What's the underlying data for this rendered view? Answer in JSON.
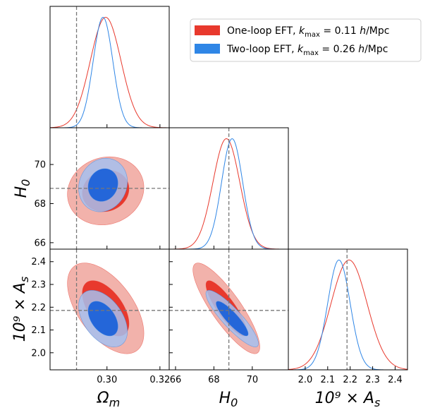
{
  "chart_data": {
    "type": "triangle-corner-plot",
    "legend": {
      "placement": "top-right",
      "entries": [
        {
          "label_prefix": "One-loop EFT, ",
          "k_var": "k",
          "k_sub": "max",
          "k_value": " = 0.11 ",
          "unit_h": "h",
          "unit_rest": "/Mpc",
          "color": "#e8392d"
        },
        {
          "label_prefix": "Two-loop EFT, ",
          "k_var": "k",
          "k_sub": "max",
          "k_value": " = 0.26 ",
          "unit_h": "h",
          "unit_rest": "/Mpc",
          "color": "#2f86e6"
        }
      ]
    },
    "params": [
      {
        "key": "Om",
        "label_main": "Ω",
        "label_sub": "m",
        "ticks": [
          0.3,
          0.32
        ],
        "tick_labels": [
          "0.30",
          "0.32"
        ],
        "range": [
          0.2785,
          0.3235
        ],
        "truth": 0.2885
      },
      {
        "key": "H0",
        "label_main": "H",
        "label_sub": "0",
        "ticks": [
          66,
          68,
          70
        ],
        "tick_labels": [
          "66",
          "68",
          "70"
        ],
        "range": [
          65.67,
          71.88
        ],
        "truth": 68.78
      },
      {
        "key": "As",
        "label_main": "10⁹ × A",
        "label_sub": "s",
        "ticks": [
          2.0,
          2.1,
          2.2,
          2.3,
          2.4
        ],
        "tick_labels": [
          "2.0",
          "2.1",
          "2.2",
          "2.3",
          "2.4"
        ],
        "range": [
          1.925,
          2.455
        ],
        "truth": 2.186
      }
    ],
    "series": [
      {
        "name": "One-loop EFT",
        "color": "#e8392d",
        "inner_fill": "#e8392d",
        "outer_fill": "#f0a49c",
        "mean": {
          "Om": 0.2995,
          "H0": 68.65,
          "As": 2.195
        },
        "sigma": {
          "Om": 0.0058,
          "H0": 0.7,
          "As": 0.08
        },
        "corr": {
          "Om_H0": 0.1,
          "Om_As": -0.55,
          "H0_As": -0.85
        }
      },
      {
        "name": "Two-loop EFT",
        "color": "#2f86e6",
        "inner_fill": "#2466d9",
        "outer_fill": "#a6c0ee",
        "mean": {
          "Om": 0.2985,
          "H0": 68.95,
          "As": 2.15
        },
        "sigma": {
          "Om": 0.0037,
          "H0": 0.55,
          "As": 0.05
        },
        "corr": {
          "Om_H0": 0.12,
          "Om_As": -0.45,
          "H0_As": -0.88
        }
      }
    ]
  }
}
